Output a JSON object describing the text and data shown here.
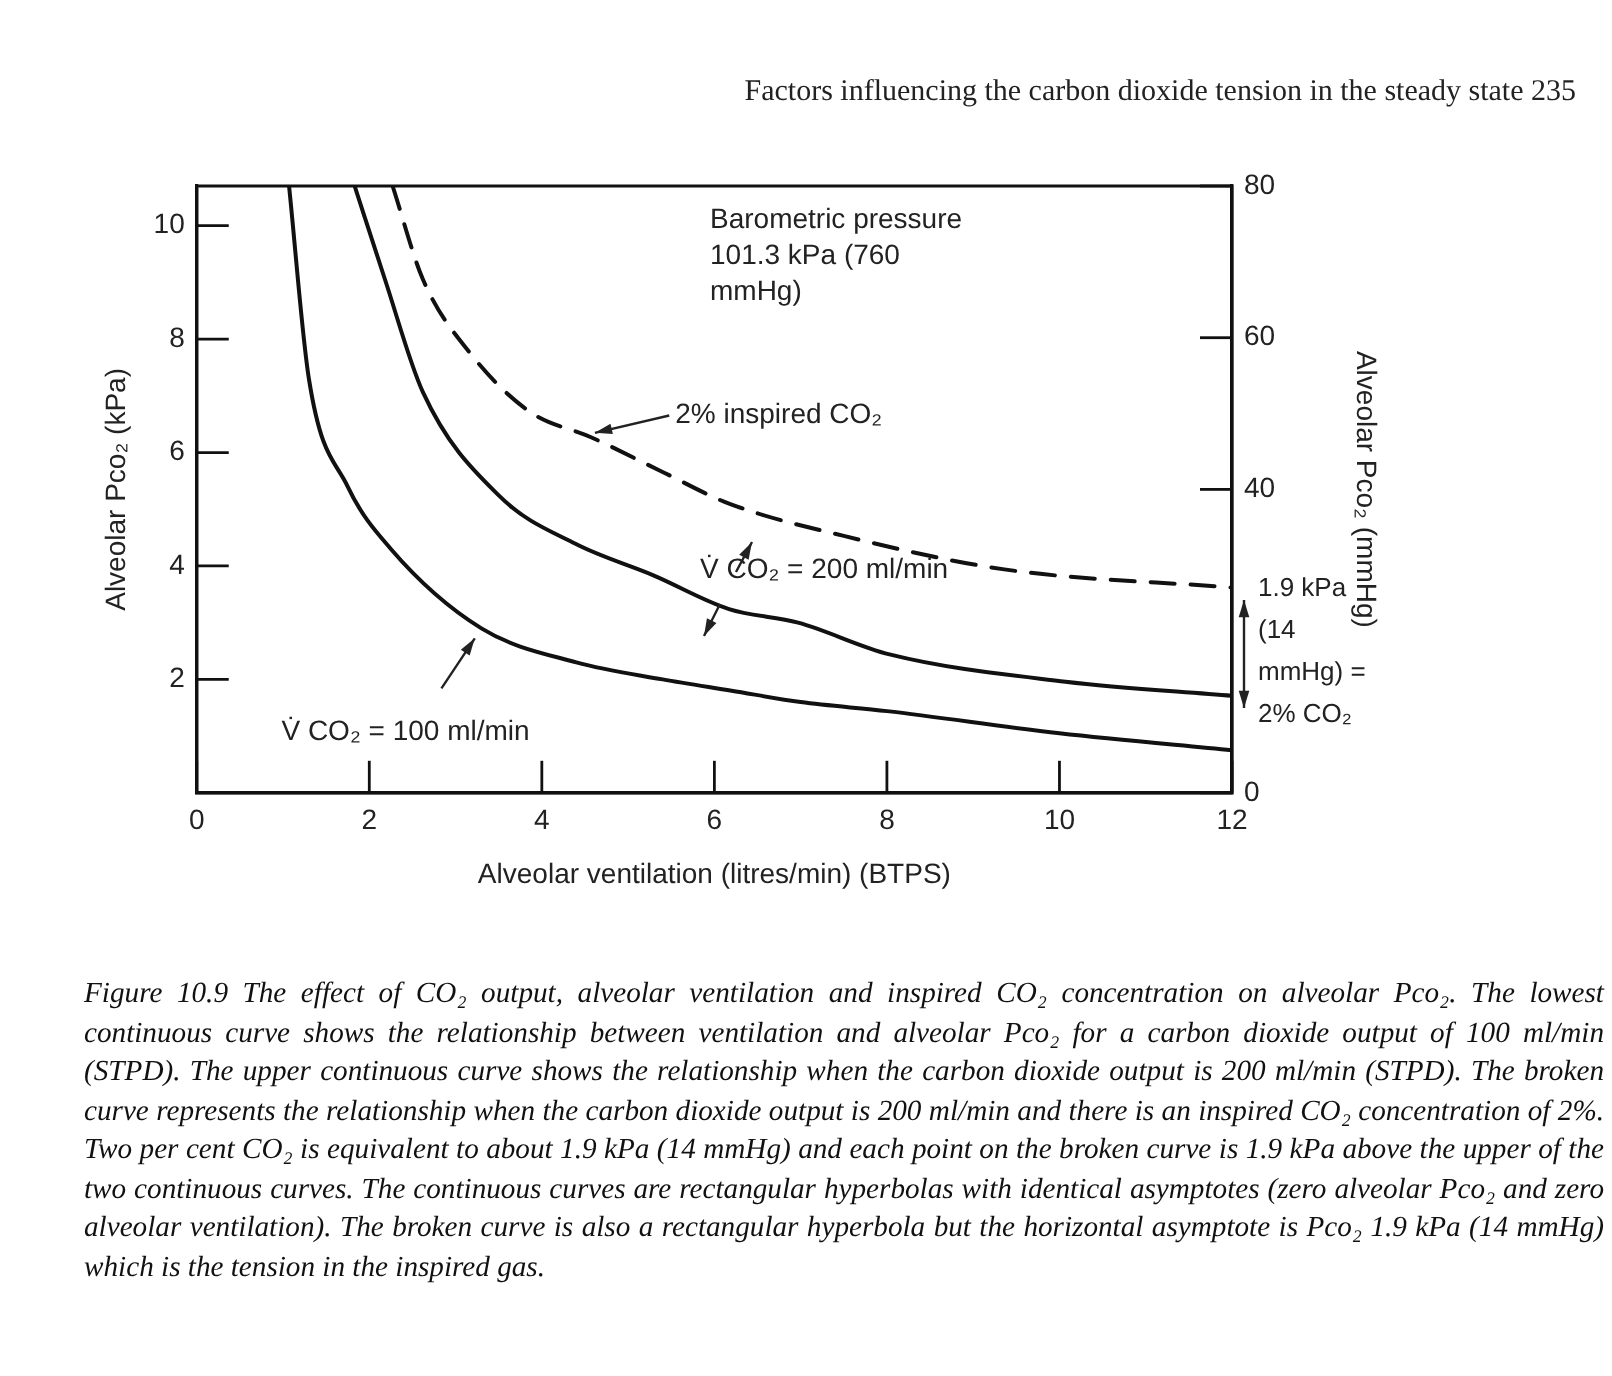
{
  "chart_data": {
    "type": "line",
    "xlabel": "Alveolar ventilation (litres/min) (BTPS)",
    "ylabel": "Alveolar Pco₂ (kPa)",
    "y2label": "Alveolar Pco₂ (mmHg)",
    "xlim": [
      0,
      12
    ],
    "xticks": [
      0,
      2,
      4,
      6,
      8,
      10,
      12
    ],
    "ylim": [
      0,
      10.7
    ],
    "yticks": [
      2,
      4,
      6,
      8,
      10
    ],
    "y2lim": [
      0,
      80
    ],
    "y2ticks": [
      0,
      40,
      60,
      80
    ],
    "marker": "none",
    "legend": false,
    "series": [
      {
        "color": "#111111",
        "line_style": "solid",
        "x": [
          1.07,
          1.3,
          1.75,
          2.25,
          3.3,
          4.4,
          5.4,
          6.2,
          7,
          8,
          10,
          12
        ],
        "values": [
          10.7,
          7.3,
          5.4,
          4.3,
          2.9,
          2.3,
          2.0,
          1.8,
          1.6,
          1.44,
          1.05,
          0.75
        ]
      },
      {
        "color": "#111111",
        "line_style": "solid",
        "x": [
          1.83,
          2.18,
          2.62,
          3.51,
          4.39,
          5.3,
          6.17,
          6.97,
          8.03,
          10.07,
          12
        ],
        "values": [
          10.7,
          9.06,
          7.07,
          5.23,
          4.39,
          3.83,
          3.24,
          3.0,
          2.44,
          1.96,
          1.71
        ]
      },
      {
        "color": "#111111",
        "line_style": "dashed",
        "x": [
          2.27,
          2.62,
          3.16,
          3.86,
          4.57,
          5.37,
          6.17,
          7.5,
          9.36,
          12
        ],
        "values": [
          10.7,
          9.06,
          7.77,
          6.72,
          6.27,
          5.68,
          5.1,
          4.53,
          3.94,
          3.62
        ]
      }
    ],
    "annotations": [
      "Factors influencing the carbon dioxide tension in the steady state 235",
      "Barometric pressure 101.3 kPa (760 mmHg)",
      {
        "text": "V̇ CO₂ = 100 ml/min",
        "x": 3.3,
        "y": 2.9
      },
      {
        "text": "2% inspired CO₂",
        "x": 4.48,
        "y": 6.3
      },
      "V̇ CO₂ = 200 ml/min",
      "1.9 kPa (14 mmHg) = 2% CO₂",
      "Figure 10.9 The effect of CO₂ output, alveolar ventilation and inspired CO₂ concentration on alveolar Pco₂. The lowest continuous curve shows the relationship between ventilation and alveolar Pco₂ for a carbon dioxide output of 100 ml/min (STPD). The upper continuous curve shows the relationship when the carbon dioxide output is 200 ml/min (STPD). The broken curve represents the relationship when the carbon dioxide output is 200 ml/min and there is an inspired CO₂ concentration of 2%. Two per cent CO₂ is equivalent to about 1.9 kPa (14 mmHg) and each point on the broken curve is 1.9 kPa above the upper of the two continuous curves. The continuous curves are rectangular hyperbolas with identical asymptotes (zero alveolar Pco₂ and zero alveolar ventilation). The broken curve is also a rectangular hyperbola but the horizontal asymptote is Pco₂ 1.9 kPa (14 mmHg) which is the tension in the inspired gas."
    ]
  }
}
